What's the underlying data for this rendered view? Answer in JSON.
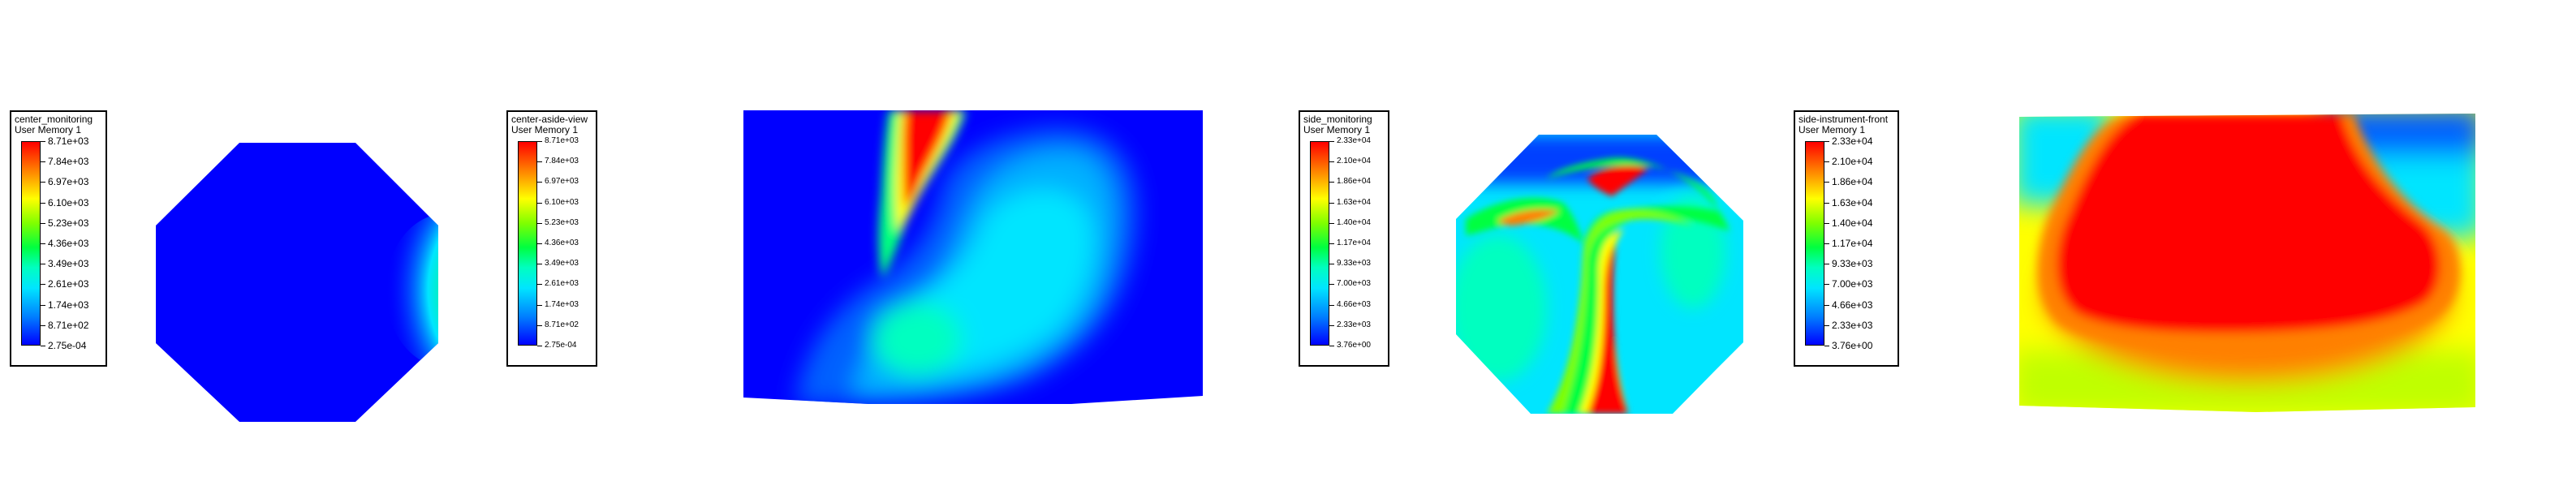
{
  "legends": [
    {
      "title": "center_monitoring",
      "subtitle": "User Memory 1",
      "labels": [
        "8.71e+03",
        "7.84e+03",
        "6.97e+03",
        "6.10e+03",
        "5.23e+03",
        "4.36e+03",
        "3.49e+03",
        "2.61e+03",
        "1.74e+03",
        "8.71e+02",
        "2.75e-04"
      ]
    },
    {
      "title": "center-aside-view",
      "subtitle": "User Memory 1",
      "labels": [
        "8.71e+03",
        "7.84e+03",
        "6.97e+03",
        "6.10e+03",
        "5.23e+03",
        "4.36e+03",
        "3.49e+03",
        "2.61e+03",
        "1.74e+03",
        "8.71e+02",
        "2.75e-04"
      ]
    },
    {
      "title": "side_monitoring",
      "subtitle": "User Memory 1",
      "labels": [
        "2.33e+04",
        "2.10e+04",
        "1.86e+04",
        "1.63e+04",
        "1.40e+04",
        "1.17e+04",
        "9.33e+03",
        "7.00e+03",
        "4.66e+03",
        "2.33e+03",
        "3.76e+00"
      ]
    },
    {
      "title": "side-instrument-front",
      "subtitle": "User Memory 1",
      "labels": [
        "2.33e+04",
        "2.10e+04",
        "1.86e+04",
        "1.63e+04",
        "1.40e+04",
        "1.17e+04",
        "9.33e+03",
        "7.00e+03",
        "4.66e+03",
        "2.33e+03",
        "3.76e+00"
      ]
    }
  ],
  "colormap": [
    "#0000ff",
    "#0080ff",
    "#00e5ff",
    "#00ffc0",
    "#00ff40",
    "#80ff00",
    "#ffff00",
    "#ff8000",
    "#ff0000"
  ]
}
